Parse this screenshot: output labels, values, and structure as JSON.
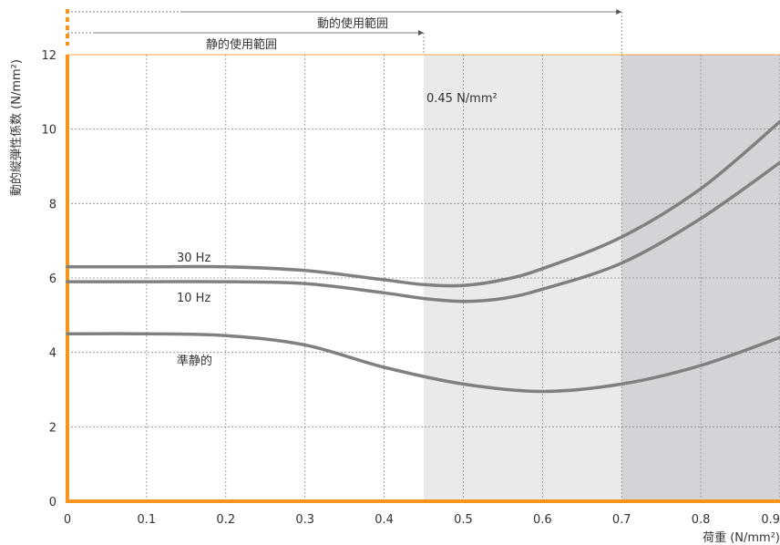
{
  "chart_data": {
    "type": "line",
    "xlabel": "荷重 (N/mm²)",
    "ylabel": "動的縦弾性係数 (N/mm²)",
    "xlim": [
      0,
      0.9
    ],
    "ylim": [
      0,
      12
    ],
    "x_ticks": [
      "0",
      "0.1",
      "0.2",
      "0.3",
      "0.4",
      "0.5",
      "0.6",
      "0.7",
      "0.8",
      "0.9"
    ],
    "y_ticks": [
      "0",
      "2",
      "4",
      "6",
      "8",
      "10",
      "12"
    ],
    "grid": true,
    "series": [
      {
        "name": "30 Hz",
        "points": [
          [
            0,
            6.3
          ],
          [
            0.1,
            6.3
          ],
          [
            0.2,
            6.3
          ],
          [
            0.3,
            6.2
          ],
          [
            0.4,
            5.95
          ],
          [
            0.45,
            5.82
          ],
          [
            0.5,
            5.8
          ],
          [
            0.55,
            5.95
          ],
          [
            0.6,
            6.25
          ],
          [
            0.7,
            7.1
          ],
          [
            0.8,
            8.4
          ],
          [
            0.9,
            10.2
          ]
        ]
      },
      {
        "name": "10 Hz",
        "points": [
          [
            0,
            5.9
          ],
          [
            0.1,
            5.9
          ],
          [
            0.2,
            5.9
          ],
          [
            0.3,
            5.85
          ],
          [
            0.4,
            5.6
          ],
          [
            0.45,
            5.45
          ],
          [
            0.5,
            5.37
          ],
          [
            0.55,
            5.45
          ],
          [
            0.6,
            5.7
          ],
          [
            0.7,
            6.4
          ],
          [
            0.8,
            7.6
          ],
          [
            0.9,
            9.1
          ]
        ]
      },
      {
        "name": "準静的",
        "points": [
          [
            0,
            4.5
          ],
          [
            0.1,
            4.5
          ],
          [
            0.2,
            4.45
          ],
          [
            0.3,
            4.2
          ],
          [
            0.4,
            3.6
          ],
          [
            0.5,
            3.15
          ],
          [
            0.6,
            2.95
          ],
          [
            0.7,
            3.15
          ],
          [
            0.8,
            3.65
          ],
          [
            0.9,
            4.4
          ]
        ]
      }
    ],
    "shaded_regions": [
      {
        "from": 0.45,
        "to": 0.7,
        "color": "#e9eaec"
      },
      {
        "from": 0.7,
        "to": 0.9,
        "color": "#d2d4d7"
      }
    ],
    "ranges": [
      {
        "label": "動的使用範囲",
        "to": 0.7
      },
      {
        "label": "静的使用範囲",
        "to": 0.45
      }
    ],
    "annotations": [
      {
        "text": "0.45 N/mm²"
      }
    ],
    "colors": {
      "axis": "#f7941d",
      "curve": "#808080",
      "grid": "#888888"
    }
  }
}
